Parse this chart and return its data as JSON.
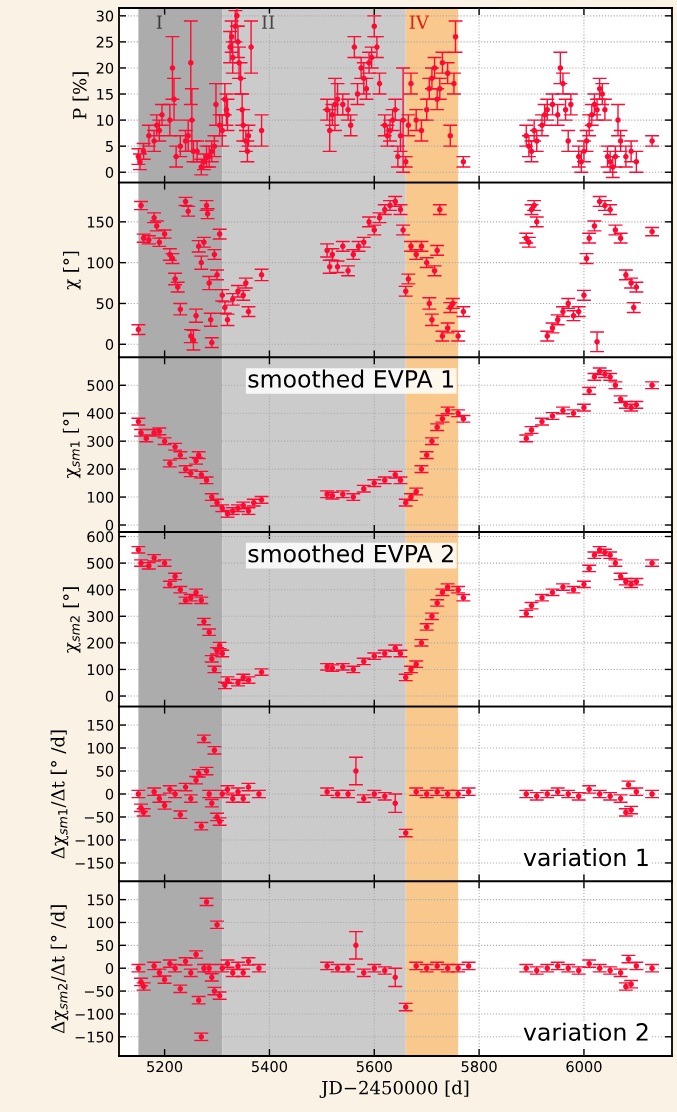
{
  "chart_data": [
    {
      "type": "scatter",
      "ylabel": "P [%]",
      "xlim": [
        5113,
        6168
      ],
      "xticks": [
        5200,
        5400,
        5600,
        5800,
        6000
      ],
      "ylim": [
        -2,
        31.5
      ],
      "yticks": [
        0,
        5,
        10,
        15,
        20,
        25,
        30
      ],
      "tick_labels": "y",
      "grid": true,
      "marker": "circle",
      "bands": [
        {
          "axis": "x",
          "from": 5150,
          "to": 5310,
          "label": "I",
          "color": "#acacac"
        },
        {
          "axis": "x",
          "from": 5310,
          "to": 5660,
          "label": "II",
          "color": "#cbcbcb"
        },
        {
          "axis": "x",
          "from": 5660,
          "to": 5760,
          "label": "IV",
          "color": "#f8c88c"
        }
      ],
      "series": [
        {
          "color": "#ff0a32",
          "x": [
            5150,
            5153,
            5160,
            5170,
            5180,
            5185,
            5190,
            5195,
            5210,
            5215,
            5218,
            5222,
            5230,
            5240,
            5245,
            5250,
            5252,
            5255,
            5262,
            5270,
            5275,
            5280,
            5285,
            5290,
            5295,
            5298,
            5305,
            5310,
            5315,
            5318,
            5320,
            5325,
            5328,
            5330,
            5335,
            5338,
            5340,
            5342,
            5345,
            5348,
            5350,
            5355,
            5358,
            5360,
            5365,
            5385,
            5510,
            5515,
            5520,
            5525,
            5530,
            5540,
            5550,
            5555,
            5562,
            5568,
            5575,
            5580,
            5585,
            5590,
            5595,
            5600,
            5605,
            5610,
            5620,
            5625,
            5630,
            5635,
            5640,
            5645,
            5650,
            5655,
            5660,
            5665,
            5670,
            5680,
            5690,
            5700,
            5705,
            5710,
            5715,
            5720,
            5725,
            5730,
            5740,
            5745,
            5752,
            5755,
            5770,
            5890,
            5895,
            5900,
            5905,
            5910,
            5920,
            5925,
            5930,
            5940,
            5950,
            5955,
            5960,
            5965,
            5970,
            5975,
            5990,
            5995,
            6000,
            6005,
            6010,
            6015,
            6020,
            6025,
            6030,
            6035,
            6040,
            6045,
            6050,
            6055,
            6060,
            6065,
            6070,
            6080,
            6090,
            6100,
            6130
          ],
          "values": [
            3,
            2,
            4,
            7,
            6,
            9,
            8,
            11,
            10,
            20,
            14,
            3,
            5,
            6,
            7,
            21,
            10,
            4,
            4,
            1,
            2,
            3,
            3,
            4,
            5,
            13,
            9,
            8,
            14,
            12,
            11,
            24,
            26,
            22,
            28,
            30,
            25,
            21,
            18,
            12,
            9,
            6,
            4,
            7,
            24,
            8,
            12,
            8,
            11,
            13,
            14,
            13,
            12,
            9,
            24,
            15,
            20,
            18,
            16,
            21,
            22,
            28,
            24,
            17,
            9,
            7,
            8,
            10,
            12,
            3,
            7,
            10,
            2,
            9,
            17,
            10,
            8,
            12,
            16,
            18,
            20,
            14,
            16,
            21,
            19,
            7,
            17,
            26,
            2,
            7,
            5,
            4,
            8,
            6,
            9,
            11,
            12,
            13,
            11,
            20,
            17,
            12,
            6,
            13,
            3,
            2,
            4,
            6,
            9,
            11,
            13,
            12,
            16,
            15,
            12,
            3,
            2,
            1,
            3,
            10,
            6,
            3,
            4,
            2,
            6
          ],
          "errors": [
            1.5,
            1.5,
            1.5,
            2,
            2,
            2,
            2,
            2,
            3,
            6,
            4,
            2,
            2,
            2,
            3,
            8,
            6,
            2,
            2,
            1.5,
            1.5,
            2,
            2,
            2,
            2,
            4,
            2,
            3,
            3,
            3,
            3,
            3,
            3,
            3,
            3,
            2,
            3,
            3,
            3,
            3,
            3,
            2,
            2,
            2,
            5,
            3,
            2,
            4,
            2,
            5,
            3,
            2,
            2,
            2,
            2,
            2,
            2,
            3,
            2,
            2,
            2,
            2,
            2,
            2,
            2,
            2,
            2,
            2,
            2,
            2,
            3,
            10,
            1,
            2,
            2,
            2,
            2,
            2,
            2,
            2,
            2,
            2,
            2,
            2,
            2,
            2,
            2,
            3,
            1,
            2,
            2,
            2,
            2,
            2,
            2,
            2,
            2,
            2,
            2,
            3,
            2,
            2,
            2,
            2,
            2,
            2,
            2,
            2,
            2,
            2,
            2,
            2,
            2,
            2,
            2,
            2,
            2,
            2,
            2,
            3,
            2,
            2,
            2,
            2,
            1
          ]
        }
      ]
    },
    {
      "type": "scatter",
      "ylabel": "χ [°]",
      "xlim": [
        5113,
        6168
      ],
      "xticks": [
        5200,
        5400,
        5600,
        5800,
        6000
      ],
      "ylim": [
        -16,
        198
      ],
      "yticks": [
        0,
        50,
        100,
        150
      ],
      "tick_labels": "y",
      "grid": true,
      "marker": "circle",
      "bands": [
        {
          "axis": "x",
          "from": 5150,
          "to": 5310,
          "color": "#acacac"
        },
        {
          "axis": "x",
          "from": 5310,
          "to": 5660,
          "color": "#cbcbcb"
        },
        {
          "axis": "x",
          "from": 5660,
          "to": 5760,
          "color": "#f8c88c"
        }
      ],
      "series": [
        {
          "color": "#ff0a32",
          "x": [
            5150,
            5155,
            5160,
            5170,
            5180,
            5185,
            5190,
            5200,
            5210,
            5215,
            5220,
            5225,
            5230,
            5240,
            5245,
            5250,
            5255,
            5260,
            5265,
            5270,
            5275,
            5280,
            5282,
            5285,
            5288,
            5290,
            5295,
            5300,
            5305,
            5310,
            5315,
            5320,
            5330,
            5340,
            5350,
            5355,
            5360,
            5385,
            5510,
            5515,
            5520,
            5530,
            5540,
            5550,
            5560,
            5570,
            5580,
            5590,
            5600,
            5610,
            5620,
            5630,
            5640,
            5650,
            5655,
            5660,
            5665,
            5670,
            5680,
            5690,
            5700,
            5705,
            5710,
            5715,
            5720,
            5725,
            5730,
            5740,
            5745,
            5750,
            5760,
            5770,
            5890,
            5895,
            5900,
            5905,
            5910,
            5930,
            5940,
            5950,
            5960,
            5970,
            5980,
            5990,
            6000,
            6005,
            6010,
            6020,
            6025,
            6030,
            6040,
            6050,
            6060,
            6070,
            6080,
            6090,
            6095,
            6100,
            6130
          ],
          "values": [
            18,
            170,
            130,
            128,
            155,
            145,
            125,
            135,
            110,
            105,
            80,
            70,
            43,
            175,
            163,
            10,
            5,
            35,
            120,
            100,
            125,
            170,
            160,
            75,
            30,
            2,
            110,
            85,
            135,
            60,
            45,
            30,
            55,
            65,
            60,
            75,
            40,
            85,
            115,
            95,
            110,
            95,
            120,
            90,
            110,
            120,
            125,
            150,
            140,
            155,
            165,
            170,
            175,
            165,
            140,
            65,
            80,
            120,
            110,
            120,
            100,
            50,
            30,
            90,
            115,
            165,
            10,
            20,
            45,
            50,
            10,
            40,
            130,
            125,
            165,
            170,
            150,
            10,
            20,
            30,
            40,
            50,
            35,
            40,
            60,
            105,
            130,
            145,
            3,
            175,
            170,
            165,
            140,
            130,
            85,
            75,
            45,
            70,
            138
          ],
          "errors": [
            6,
            5,
            5,
            5,
            6,
            6,
            5,
            5,
            7,
            6,
            7,
            6,
            7,
            5,
            6,
            8,
            12,
            8,
            7,
            8,
            6,
            6,
            6,
            8,
            8,
            6,
            6,
            6,
            6,
            7,
            7,
            7,
            7,
            7,
            6,
            6,
            6,
            7,
            8,
            8,
            7,
            7,
            6,
            6,
            6,
            6,
            6,
            6,
            6,
            6,
            6,
            6,
            6,
            6,
            6,
            6,
            6,
            6,
            6,
            6,
            6,
            7,
            7,
            6,
            6,
            6,
            6,
            6,
            6,
            6,
            6,
            6,
            6,
            6,
            6,
            6,
            6,
            6,
            6,
            6,
            6,
            6,
            6,
            6,
            6,
            6,
            6,
            6,
            12,
            6,
            6,
            6,
            6,
            6,
            6,
            6,
            6,
            6,
            5
          ]
        }
      ]
    },
    {
      "type": "scatter",
      "ylabel": "χ$_{sm1}$ [°]",
      "xlim": [
        5113,
        6168
      ],
      "xticks": [
        5200,
        5400,
        5600,
        5800,
        6000
      ],
      "ylim": [
        -25,
        600
      ],
      "yticks": [
        0,
        100,
        200,
        300,
        400,
        500
      ],
      "tick_labels": "y",
      "grid": true,
      "marker": "circle",
      "annotations": [
        "smoothed EVPA 1"
      ],
      "bands": [
        {
          "axis": "x",
          "from": 5150,
          "to": 5310,
          "color": "#acacac"
        },
        {
          "axis": "x",
          "from": 5310,
          "to": 5660,
          "color": "#cbcbcb"
        },
        {
          "axis": "x",
          "from": 5660,
          "to": 5760,
          "color": "#f8c88c"
        }
      ],
      "series": [
        {
          "color": "#ff0a32",
          "x": [
            5150,
            5155,
            5165,
            5180,
            5190,
            5200,
            5210,
            5220,
            5230,
            5240,
            5250,
            5260,
            5265,
            5270,
            5280,
            5290,
            5300,
            5310,
            5320,
            5330,
            5340,
            5350,
            5360,
            5370,
            5385,
            5510,
            5520,
            5540,
            5560,
            5580,
            5600,
            5620,
            5640,
            5650,
            5660,
            5670,
            5680,
            5690,
            5700,
            5710,
            5720,
            5730,
            5740,
            5760,
            5770,
            5890,
            5900,
            5920,
            5940,
            5960,
            5980,
            6000,
            6010,
            6020,
            6030,
            6040,
            6050,
            6060,
            6070,
            6080,
            6090,
            6100,
            6130
          ],
          "values": [
            370,
            330,
            310,
            330,
            335,
            300,
            220,
            280,
            250,
            200,
            185,
            230,
            250,
            180,
            160,
            100,
            80,
            60,
            40,
            50,
            60,
            70,
            50,
            80,
            90,
            110,
            105,
            110,
            100,
            130,
            150,
            160,
            180,
            160,
            80,
            100,
            120,
            200,
            250,
            300,
            350,
            380,
            410,
            400,
            380,
            310,
            340,
            370,
            390,
            410,
            400,
            420,
            480,
            530,
            550,
            540,
            530,
            500,
            450,
            430,
            420,
            430,
            500
          ],
          "errors": [
            12,
            12,
            12,
            12,
            12,
            12,
            12,
            12,
            12,
            12,
            12,
            12,
            12,
            12,
            12,
            12,
            12,
            12,
            12,
            12,
            12,
            12,
            12,
            12,
            12,
            12,
            12,
            12,
            12,
            12,
            12,
            12,
            12,
            12,
            12,
            12,
            12,
            12,
            12,
            12,
            12,
            12,
            12,
            12,
            12,
            12,
            12,
            12,
            12,
            12,
            12,
            12,
            12,
            12,
            12,
            12,
            12,
            12,
            12,
            12,
            12,
            12,
            12
          ]
        }
      ]
    },
    {
      "type": "scatter",
      "ylabel": "χ$_{sm2}$ [°]",
      "xlim": [
        5113,
        6168
      ],
      "xticks": [
        5200,
        5400,
        5600,
        5800,
        6000
      ],
      "ylim": [
        -40,
        617
      ],
      "yticks": [
        0,
        100,
        200,
        300,
        400,
        500,
        600
      ],
      "tick_labels": "y",
      "grid": true,
      "marker": "circle",
      "annotations": [
        "smoothed EVPA 2"
      ],
      "bands": [
        {
          "axis": "x",
          "from": 5150,
          "to": 5310,
          "color": "#acacac"
        },
        {
          "axis": "x",
          "from": 5310,
          "to": 5660,
          "color": "#cbcbcb"
        },
        {
          "axis": "x",
          "from": 5660,
          "to": 5760,
          "color": "#f8c88c"
        }
      ],
      "series": [
        {
          "color": "#ff0a32",
          "x": [
            5150,
            5155,
            5170,
            5180,
            5200,
            5210,
            5220,
            5230,
            5240,
            5250,
            5260,
            5270,
            5275,
            5285,
            5290,
            5295,
            5300,
            5305,
            5310,
            5315,
            5320,
            5340,
            5350,
            5360,
            5385,
            5510,
            5520,
            5540,
            5560,
            5580,
            5600,
            5620,
            5640,
            5650,
            5660,
            5670,
            5680,
            5690,
            5700,
            5710,
            5720,
            5730,
            5740,
            5760,
            5770,
            5890,
            5900,
            5920,
            5940,
            5960,
            5980,
            6000,
            6010,
            6020,
            6030,
            6040,
            6050,
            6060,
            6070,
            6080,
            6090,
            6100,
            6130
          ],
          "values": [
            550,
            500,
            490,
            520,
            500,
            420,
            450,
            400,
            360,
            370,
            390,
            360,
            280,
            240,
            140,
            100,
            170,
            190,
            160,
            40,
            60,
            50,
            70,
            60,
            90,
            110,
            105,
            110,
            100,
            130,
            150,
            160,
            180,
            160,
            70,
            100,
            120,
            200,
            260,
            300,
            350,
            390,
            410,
            400,
            370,
            310,
            340,
            370,
            390,
            410,
            400,
            420,
            480,
            530,
            550,
            540,
            530,
            500,
            450,
            430,
            420,
            430,
            500
          ],
          "errors": [
            12,
            12,
            12,
            12,
            12,
            12,
            12,
            12,
            12,
            12,
            12,
            12,
            12,
            12,
            12,
            12,
            12,
            12,
            12,
            12,
            12,
            12,
            12,
            12,
            12,
            12,
            12,
            12,
            12,
            12,
            12,
            12,
            12,
            12,
            12,
            12,
            12,
            12,
            12,
            12,
            12,
            12,
            12,
            12,
            12,
            12,
            12,
            12,
            12,
            12,
            12,
            12,
            12,
            12,
            12,
            12,
            12,
            12,
            12,
            12,
            12,
            12,
            12
          ]
        }
      ]
    },
    {
      "type": "scatter",
      "ylabel": "Δχ$_{sm1}$/Δt [° /d]",
      "xlim": [
        5113,
        6168
      ],
      "xticks": [
        5200,
        5400,
        5600,
        5800,
        6000
      ],
      "ylim": [
        -190,
        190
      ],
      "yticks": [
        -150,
        -100,
        -50,
        0,
        50,
        100,
        150
      ],
      "tick_labels": "y",
      "grid": true,
      "marker": "circle",
      "annotations": [
        "variation 1"
      ],
      "bands": [
        {
          "axis": "x",
          "from": 5150,
          "to": 5310,
          "color": "#acacac"
        },
        {
          "axis": "x",
          "from": 5310,
          "to": 5660,
          "color": "#cbcbcb"
        },
        {
          "axis": "x",
          "from": 5660,
          "to": 5760,
          "color": "#f8c88c"
        }
      ],
      "series": [
        {
          "color": "#ff0a32",
          "x": [
            5150,
            5155,
            5160,
            5180,
            5190,
            5200,
            5210,
            5220,
            5230,
            5240,
            5250,
            5260,
            5265,
            5270,
            5275,
            5280,
            5285,
            5290,
            5295,
            5300,
            5305,
            5310,
            5320,
            5330,
            5340,
            5350,
            5360,
            5380,
            5510,
            5530,
            5550,
            5565,
            5580,
            5600,
            5620,
            5640,
            5660,
            5680,
            5700,
            5720,
            5740,
            5760,
            5780,
            5890,
            5910,
            5930,
            5950,
            5970,
            5990,
            6010,
            6030,
            6050,
            6070,
            6080,
            6085,
            6090,
            6100,
            6130
          ],
          "values": [
            0,
            -30,
            -40,
            5,
            -10,
            -25,
            10,
            0,
            -45,
            15,
            -10,
            30,
            45,
            -70,
            120,
            50,
            0,
            -20,
            95,
            -50,
            -60,
            0,
            10,
            -10,
            5,
            -10,
            15,
            0,
            5,
            0,
            0,
            50,
            -10,
            0,
            -5,
            -20,
            -85,
            5,
            0,
            5,
            0,
            0,
            5,
            0,
            -5,
            0,
            5,
            0,
            -5,
            10,
            0,
            -5,
            -10,
            -40,
            20,
            -35,
            5,
            0
          ],
          "errors": [
            8,
            8,
            8,
            8,
            8,
            8,
            8,
            8,
            8,
            8,
            8,
            8,
            8,
            8,
            8,
            8,
            8,
            8,
            8,
            8,
            8,
            8,
            8,
            8,
            8,
            8,
            8,
            8,
            8,
            8,
            8,
            30,
            8,
            8,
            8,
            20,
            8,
            8,
            8,
            8,
            8,
            8,
            8,
            8,
            8,
            8,
            8,
            8,
            8,
            8,
            8,
            8,
            8,
            8,
            8,
            8,
            8,
            8
          ]
        }
      ]
    },
    {
      "type": "scatter",
      "ylabel": "Δχ$_{sm2}$/Δt [° /d]",
      "xlabel": "JD−2450000 [d]",
      "xlim": [
        5113,
        6168
      ],
      "xticks": [
        5200,
        5400,
        5600,
        5800,
        6000
      ],
      "ylim": [
        -192,
        190
      ],
      "yticks": [
        -150,
        -100,
        -50,
        0,
        50,
        100,
        150
      ],
      "grid": true,
      "marker": "circle",
      "annotations": [
        "variation 2"
      ],
      "bands": [
        {
          "axis": "x",
          "from": 5150,
          "to": 5310,
          "color": "#acacac"
        },
        {
          "axis": "x",
          "from": 5310,
          "to": 5660,
          "color": "#cbcbcb"
        },
        {
          "axis": "x",
          "from": 5660,
          "to": 5760,
          "color": "#f8c88c"
        }
      ],
      "series": [
        {
          "color": "#ff0a32",
          "x": [
            5150,
            5155,
            5160,
            5180,
            5190,
            5200,
            5210,
            5220,
            5230,
            5240,
            5250,
            5260,
            5265,
            5270,
            5275,
            5280,
            5285,
            5290,
            5295,
            5300,
            5305,
            5310,
            5320,
            5330,
            5340,
            5350,
            5360,
            5380,
            5510,
            5530,
            5550,
            5565,
            5580,
            5600,
            5620,
            5640,
            5660,
            5680,
            5700,
            5720,
            5740,
            5760,
            5780,
            5890,
            5910,
            5930,
            5950,
            5970,
            5990,
            6010,
            6030,
            6050,
            6070,
            6080,
            6085,
            6090,
            6100,
            6130
          ],
          "values": [
            0,
            -30,
            -40,
            5,
            -10,
            -25,
            10,
            0,
            -45,
            15,
            -10,
            30,
            -70,
            -150,
            0,
            145,
            0,
            -20,
            -50,
            95,
            -60,
            0,
            10,
            -10,
            5,
            -10,
            15,
            0,
            5,
            0,
            0,
            50,
            -10,
            0,
            -5,
            -20,
            -85,
            5,
            0,
            5,
            0,
            0,
            5,
            0,
            -5,
            0,
            5,
            0,
            -5,
            10,
            0,
            -5,
            -10,
            -40,
            20,
            -35,
            5,
            0
          ],
          "errors": [
            8,
            8,
            8,
            8,
            8,
            8,
            8,
            8,
            8,
            8,
            8,
            8,
            8,
            8,
            8,
            8,
            8,
            8,
            8,
            8,
            8,
            8,
            8,
            8,
            8,
            8,
            8,
            8,
            8,
            8,
            8,
            30,
            8,
            8,
            8,
            20,
            8,
            8,
            8,
            8,
            8,
            8,
            8,
            8,
            8,
            8,
            8,
            8,
            8,
            8,
            8,
            8,
            8,
            8,
            8,
            8,
            8,
            8
          ]
        }
      ]
    }
  ]
}
